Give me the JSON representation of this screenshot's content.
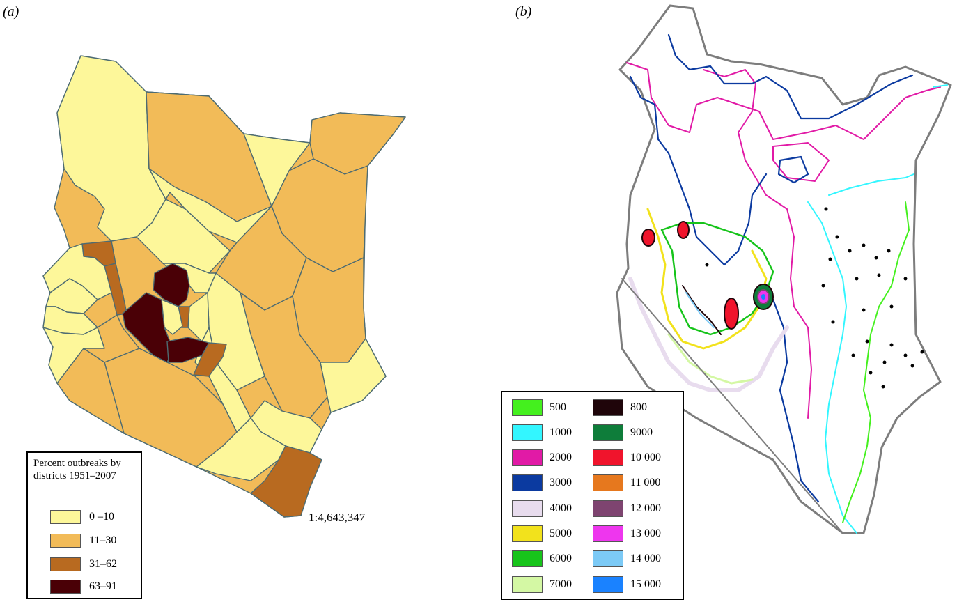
{
  "panels": {
    "a": {
      "label": "(a)",
      "scale": "1:4,643,347",
      "legend": {
        "title": "Percent outbreaks by districts 1951–2007",
        "items": [
          {
            "label": "0 –10",
            "color": "#fdf79a"
          },
          {
            "label": "11–30",
            "color": "#f2bb58"
          },
          {
            "label": "31–62",
            "color": "#b86a20"
          },
          {
            "label": "63–91",
            "color": "#4a0006"
          }
        ]
      }
    },
    "b": {
      "label": "(b)",
      "legend": {
        "items": [
          {
            "label": "500",
            "color": "#44f01e"
          },
          {
            "label": "1000",
            "color": "#33f6ff"
          },
          {
            "label": "2000",
            "color": "#e11aa6"
          },
          {
            "label": "3000",
            "color": "#0b3aa0"
          },
          {
            "label": "4000",
            "color": "#e8dcee"
          },
          {
            "label": "5000",
            "color": "#f2e21c"
          },
          {
            "label": "6000",
            "color": "#17c41b"
          },
          {
            "label": "7000",
            "color": "#d4f8a4"
          },
          {
            "label": "800",
            "color": "#1f050a"
          },
          {
            "label": "9000",
            "color": "#0e7d3a"
          },
          {
            "label": "10 000",
            "color": "#f0142c"
          },
          {
            "label": "11 000",
            "color": "#e6781e"
          },
          {
            "label": "12 000",
            "color": "#7e4470"
          },
          {
            "label": "13 000",
            "color": "#ee36ee"
          },
          {
            "label": "14 000",
            "color": "#7ccaf6"
          },
          {
            "label": "15 000",
            "color": "#1a82ff"
          }
        ]
      }
    }
  }
}
